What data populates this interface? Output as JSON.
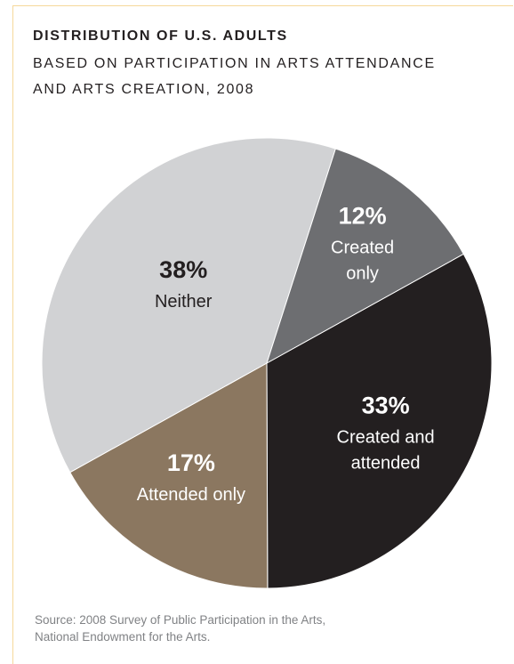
{
  "chart_data": {
    "type": "pie",
    "title": "DISTRIBUTION OF U.S. ADULTS",
    "subtitle_lines": [
      "BASED ON PARTICIPATION IN ARTS ATTENDANCE",
      "AND ARTS CREATION, 2008"
    ],
    "slices": [
      {
        "label_lines": [
          "Created and",
          "attended"
        ],
        "value": 33,
        "value_label": "33%",
        "color": "#231f20",
        "text_color": "#ffffff"
      },
      {
        "label_lines": [
          "Attended only"
        ],
        "value": 17,
        "value_label": "17%",
        "color": "#8b7760",
        "text_color": "#ffffff"
      },
      {
        "label_lines": [
          "Neither"
        ],
        "value": 38,
        "value_label": "38%",
        "color": "#d1d2d4",
        "text_color": "#231f20"
      },
      {
        "label_lines": [
          "Created",
          "only"
        ],
        "value": 12,
        "value_label": "12%",
        "color": "#6d6e71",
        "text_color": "#ffffff"
      }
    ]
  },
  "source_lines": [
    "Source: 2008 Survey of Public Participation in the Arts,",
    "National Endowment for the Arts."
  ]
}
